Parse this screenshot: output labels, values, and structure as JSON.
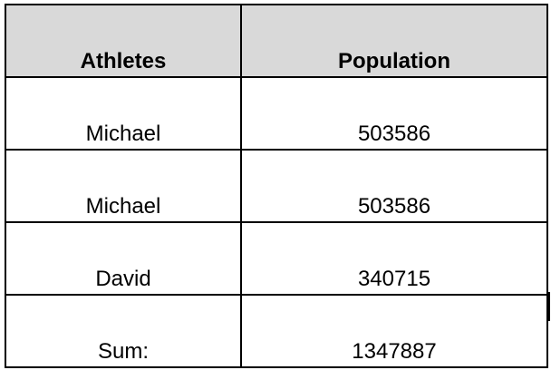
{
  "table": {
    "headers": [
      "Athletes",
      "Population"
    ],
    "rows": [
      [
        "Michael",
        "503586"
      ],
      [
        "Michael",
        "503586"
      ],
      [
        "David",
        "340715"
      ],
      [
        "Sum:",
        "1347887"
      ]
    ],
    "header_background": "#d9d9d9",
    "border_color": "#000000"
  }
}
